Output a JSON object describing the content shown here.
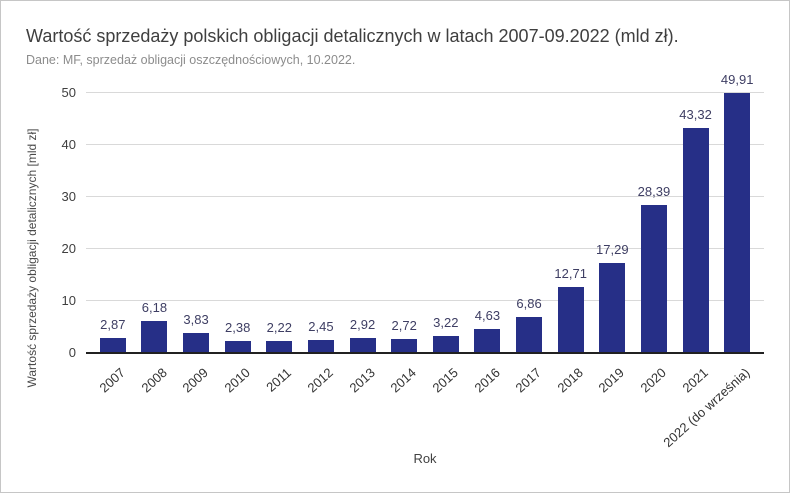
{
  "header": {
    "title": "Wartość sprzedaży polskich obligacji detalicznych w latach 2007-09.2022 (mld zł).",
    "subtitle": "Dane: MF, sprzedaż obligacji oszczędnościowych, 10.2022."
  },
  "chart_data": {
    "type": "bar",
    "title": "Wartość sprzedaży polskich obligacji detalicznych w latach 2007-09.2022 (mld zł).",
    "subtitle": "Dane: MF, sprzedaż obligacji oszczędnościowych, 10.2022.",
    "xlabel": "Rok",
    "ylabel": "Wartość sprzedaży obligacji detalicznych [mld zł]",
    "ylim": [
      0,
      50
    ],
    "yticks": [
      0,
      10,
      20,
      30,
      40,
      50
    ],
    "grid": true,
    "legend": "none",
    "bar_color": "#262f87",
    "value_label_color": "#3e3e63",
    "categories": [
      "2007",
      "2008",
      "2009",
      "2010",
      "2011",
      "2012",
      "2013",
      "2014",
      "2015",
      "2016",
      "2017",
      "2018",
      "2019",
      "2020",
      "2021",
      "2022 (do września)"
    ],
    "values": [
      2.87,
      6.18,
      3.83,
      2.38,
      2.22,
      2.45,
      2.92,
      2.72,
      3.22,
      4.63,
      6.86,
      12.71,
      17.29,
      28.39,
      43.32,
      49.91
    ],
    "value_labels": [
      "2,87",
      "6,18",
      "3,83",
      "2,38",
      "2,22",
      "2,45",
      "2,92",
      "2,72",
      "3,22",
      "4,63",
      "6,86",
      "12,71",
      "17,29",
      "28,39",
      "43,32",
      "49,91"
    ]
  }
}
